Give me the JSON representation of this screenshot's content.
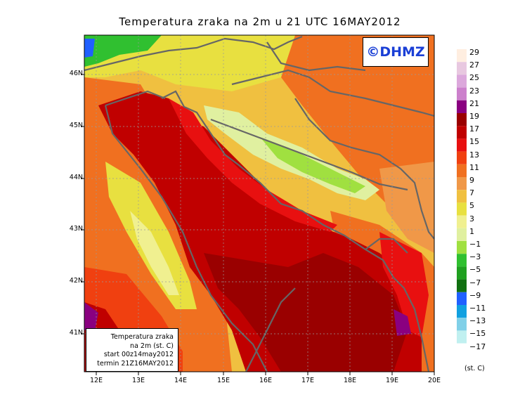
{
  "title": "Temperatura zraka na 2m u 21 UTC 16MAY2012",
  "logo": "©DHMZ",
  "info": {
    "line1": "Temperatura zraka",
    "line2": "na 2m (st. C)",
    "line3": "start 00z14may2012",
    "line4": "termin 21Z16MAY2012"
  },
  "axes": {
    "x_ticks": [
      "12E",
      "13E",
      "14E",
      "15E",
      "16E",
      "17E",
      "18E",
      "19E",
      "20E"
    ],
    "y_ticks": [
      "46N",
      "45N",
      "44N",
      "43N",
      "42N",
      "41N"
    ]
  },
  "legend": {
    "labels": [
      "29",
      "27",
      "25",
      "23",
      "21",
      "19",
      "17",
      "15",
      "13",
      "11",
      "9",
      "7",
      "5",
      "3",
      "1",
      "−1",
      "−3",
      "−5",
      "−7",
      "−9",
      "−11",
      "−13",
      "−15",
      "−17"
    ],
    "colors": [
      "#ffeee0",
      "#e8c8e0",
      "#dca8dc",
      "#cc80cc",
      "#8a0080",
      "#9a0000",
      "#c00000",
      "#e81010",
      "#f04010",
      "#f07020",
      "#f09848",
      "#f0c040",
      "#e8e040",
      "#f0f090",
      "#e0f0a0",
      "#a0e040",
      "#30c030",
      "#20a020",
      "#107010",
      "#2060ff",
      "#10a0e0",
      "#80d0e8",
      "#c0f0f0",
      "#ffffff"
    ],
    "units": "(st. C)"
  },
  "colors": {
    "sea_deep": "#9a0000",
    "sea": "#c00000",
    "coast_warm": "#e81010",
    "land_warm": "#f07020",
    "land_mild": "#f0c040",
    "land_cool": "#e8e040",
    "mountain": "#e0f0a0",
    "mountain_cold": "#a0e040",
    "alps": "#30c030",
    "border": "#666666"
  }
}
